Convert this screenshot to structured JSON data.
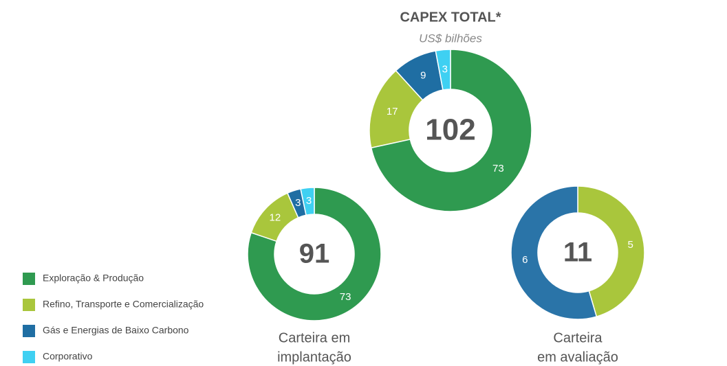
{
  "chart_data": [
    {
      "type": "donut",
      "title": "CAPEX TOTAL*",
      "subtitle": "US$ bilhões",
      "total": 102,
      "categories": [
        "Exploração & Produção",
        "Refino, Transporte e Comercialização",
        "Gás e Energias de Baixo Carbono",
        "Corporativo"
      ],
      "values": [
        73,
        17,
        9,
        3
      ],
      "colors": [
        "#2f9a50",
        "#a9c63c",
        "#1f6ea3",
        "#3fd0f2"
      ]
    },
    {
      "type": "donut",
      "title": [
        "Carteira em",
        "implantação"
      ],
      "total": 91,
      "categories": [
        "Exploração & Produção",
        "Refino, Transporte e Comercialização",
        "Gás e Energias de Baixo Carbono",
        "Corporativo"
      ],
      "values": [
        73,
        12,
        3,
        3
      ],
      "colors": [
        "#2f9a50",
        "#a9c63c",
        "#1f6ea3",
        "#3fd0f2"
      ]
    },
    {
      "type": "donut",
      "title": [
        "Carteira",
        "em avaliação"
      ],
      "total": 11,
      "categories": [
        "Refino, Transporte e Comercialização",
        "Gás e Energias de Baixo Carbono"
      ],
      "values": [
        5,
        6
      ],
      "colors": [
        "#a9c63c",
        "#2a74a8"
      ]
    }
  ]
}
